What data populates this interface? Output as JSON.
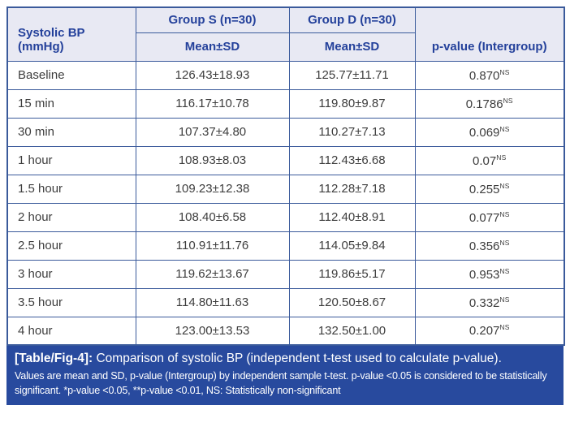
{
  "colors": {
    "border": "#3a5a9b",
    "header_bg": "#e8e9f3",
    "header_text": "#24419b",
    "footer_bg": "#284a9e",
    "body_text": "#3d3d3d"
  },
  "table": {
    "col_time_header": "Systolic BP (mmHg)",
    "groups": [
      {
        "label": "Group S (n=30)",
        "sub": "Mean±SD"
      },
      {
        "label": "Group D (n=30)",
        "sub": "Mean±SD"
      }
    ],
    "p_header": "p-value (Intergroup)",
    "rows": [
      {
        "time": "Baseline",
        "group_s": "126.43±18.93",
        "group_d": "125.77±11.71",
        "p": "0.870",
        "p_sup": "NS"
      },
      {
        "time": "15 min",
        "group_s": "116.17±10.78",
        "group_d": "119.80±9.87",
        "p": "0.1786",
        "p_sup": "NS"
      },
      {
        "time": "30 min",
        "group_s": "107.37±4.80",
        "group_d": "110.27±7.13",
        "p": "0.069",
        "p_sup": "NS"
      },
      {
        "time": "1 hour",
        "group_s": "108.93±8.03",
        "group_d": "112.43±6.68",
        "p": "0.07",
        "p_sup": "NS"
      },
      {
        "time": "1.5 hour",
        "group_s": "109.23±12.38",
        "group_d": "112.28±7.18",
        "p": "0.255",
        "p_sup": "NS"
      },
      {
        "time": "2 hour",
        "group_s": "108.40±6.58",
        "group_d": "112.40±8.91",
        "p": "0.077",
        "p_sup": "NS"
      },
      {
        "time": "2.5 hour",
        "group_s": "110.91±11.76",
        "group_d": "114.05±9.84",
        "p": "0.356",
        "p_sup": "NS"
      },
      {
        "time": "3 hour",
        "group_s": "119.62±13.67",
        "group_d": "119.86±5.17",
        "p": "0.953",
        "p_sup": "NS"
      },
      {
        "time": "3.5 hour",
        "group_s": "114.80±11.63",
        "group_d": "120.50±8.67",
        "p": "0.332",
        "p_sup": "NS"
      },
      {
        "time": "4 hour",
        "group_s": "123.00±13.53",
        "group_d": "132.50±1.00",
        "p": "0.207",
        "p_sup": "NS"
      }
    ]
  },
  "caption": {
    "tag": "[Table/Fig-4]:",
    "text": "Comparison of systolic BP (independent t-test used to calculate p-value)."
  },
  "footnote": "Values are mean and SD, p-value (Intergroup) by independent sample t-test. p-value <0.05 is considered to be statistically significant. *p-value <0.05, **p-value <0.01, NS: Statistically non-significant"
}
